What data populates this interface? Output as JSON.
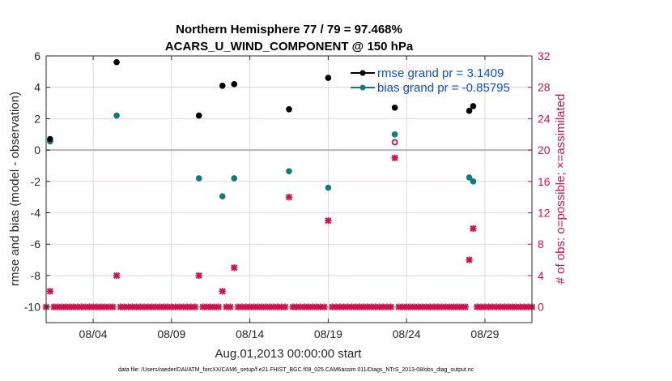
{
  "chart_data": {
    "type": "scatter",
    "title_line1": "Northern Hemisphere 77 / 79 = 97.468%",
    "title_line2": "ACARS_U_WIND_COMPONENT @ 150 hPa",
    "xlabel": "Aug.01,2013 00:00:00 start",
    "ylabel_left": "rmse and bias (model - observation)",
    "ylabel_right": "# of obs: o=possible; ×=assimilated",
    "xlim": [
      1.0,
      32.0
    ],
    "ylim_left": [
      -11,
      6
    ],
    "ylim_right": [
      -2,
      32
    ],
    "x_ticks": [
      4,
      9,
      14,
      19,
      24,
      29
    ],
    "x_tick_labels": [
      "08/04",
      "08/09",
      "08/14",
      "08/19",
      "08/24",
      "08/29"
    ],
    "y_ticks_left": [
      6,
      4,
      2,
      0,
      -2,
      -4,
      -6,
      -8,
      -10
    ],
    "y_tick_labels_left": [
      "6",
      "4",
      "2",
      "0",
      "-2",
      "-4",
      "-6",
      "-8",
      "-10"
    ],
    "y_ticks_right": [
      32,
      28,
      24,
      20,
      16,
      12,
      8,
      4,
      0
    ],
    "y_tick_labels_right": [
      "32",
      "28",
      "24",
      "20",
      "16",
      "12",
      "8",
      "4",
      "0"
    ],
    "footnote": "data file: /Users/raeder/DAI/ATM_forcXX/CAM6_setup/f.e21.FHIST_BGC.f09_025.CAM6assim.011/Diags_NTrS_2013-08/obs_diag_output.nc",
    "series": [
      {
        "name": "rmse grand pr = 3.1409",
        "axis": "left",
        "color": "#000000",
        "x": [
          1.25,
          5.5,
          10.75,
          12.25,
          13.0,
          16.5,
          19.0,
          23.25,
          28.0,
          28.25
        ],
        "values": [
          0.7,
          5.6,
          2.2,
          4.1,
          4.2,
          2.6,
          4.6,
          2.7,
          2.5,
          2.8
        ]
      },
      {
        "name": "bias grand pr = -0.85795",
        "axis": "left",
        "color": "#0e7c7b",
        "x": [
          1.25,
          5.5,
          10.75,
          12.25,
          13.0,
          16.5,
          19.0,
          23.25,
          28.0,
          28.25
        ],
        "values": [
          0.55,
          2.2,
          -1.8,
          -2.95,
          -1.8,
          -1.35,
          -2.4,
          1.0,
          -1.75,
          -2.0
        ]
      },
      {
        "name": "obs possible",
        "axis": "right",
        "color": "#d0104c",
        "x": [
          23.25
        ],
        "values": [
          21
        ]
      },
      {
        "name": "obs assimilated (nonzero)",
        "axis": "right",
        "color": "#d0104c",
        "x": [
          1.25,
          5.5,
          10.75,
          12.25,
          13.0,
          16.5,
          19.0,
          23.25,
          28.0,
          28.25
        ],
        "values": [
          2,
          4,
          4,
          2,
          5,
          14,
          11,
          19,
          6,
          10
        ]
      }
    ]
  }
}
